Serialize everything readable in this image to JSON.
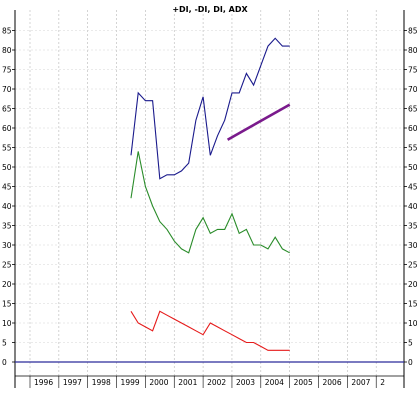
{
  "chart_data": {
    "type": "line",
    "title": "+DI, -DI, DI, ADX",
    "xlabel": "",
    "ylabel": "",
    "xlim": [
      1995.4,
      2008.1
    ],
    "ylim": [
      -2,
      88
    ],
    "y_ticks": [
      0,
      5,
      10,
      15,
      20,
      25,
      30,
      35,
      40,
      45,
      50,
      55,
      60,
      65,
      70,
      75,
      80,
      85
    ],
    "x_ticks": [
      "1996",
      "1997",
      "1998",
      "1999",
      "2000",
      "2001",
      "2002",
      "2003",
      "2004",
      "2005",
      "2006",
      "2007",
      "2"
    ],
    "grid": true,
    "legend": "none",
    "series": [
      {
        "color": "#1a1a8c",
        "x": [
          1999.5,
          1999.75,
          2000.0,
          2000.25,
          2000.5,
          2000.75,
          2001.0,
          2001.25,
          2001.5,
          2001.75,
          2002.0,
          2002.25,
          2002.5,
          2002.75,
          2003.0,
          2003.25,
          2003.5,
          2003.75,
          2004.0,
          2004.25,
          2004.5,
          2004.75,
          2005.0
        ],
        "values": [
          53,
          69,
          67,
          67,
          47,
          48,
          48,
          49,
          51,
          62,
          68,
          53,
          58,
          62,
          69,
          69,
          74,
          71,
          76,
          81,
          83,
          81,
          81
        ]
      },
      {
        "color": "#2a8c2a",
        "x": [
          1999.5,
          1999.75,
          2000.0,
          2000.25,
          2000.5,
          2000.75,
          2001.0,
          2001.25,
          2001.5,
          2001.75,
          2002.0,
          2002.25,
          2002.5,
          2002.75,
          2003.0,
          2003.25,
          2003.5,
          2003.75,
          2004.0,
          2004.25,
          2004.5,
          2004.75,
          2005.0
        ],
        "values": [
          42,
          54,
          45,
          40,
          36,
          34,
          31,
          29,
          28,
          34,
          37,
          33,
          34,
          34,
          38,
          33,
          34,
          30,
          30,
          29,
          32,
          29,
          28
        ]
      },
      {
        "color": "#e61a1a",
        "x": [
          1999.5,
          1999.75,
          2000.0,
          2000.25,
          2000.5,
          2000.75,
          2001.0,
          2001.25,
          2001.5,
          2001.75,
          2002.0,
          2002.25,
          2002.5,
          2002.75,
          2003.0,
          2003.25,
          2003.5,
          2003.75,
          2004.0,
          2004.25,
          2004.5,
          2004.75,
          2005.0
        ],
        "values": [
          13,
          10,
          9,
          8,
          13,
          12,
          11,
          10,
          9,
          8,
          7,
          10,
          9,
          8,
          7,
          6,
          5,
          5,
          4,
          3,
          3,
          3,
          3
        ]
      },
      {
        "color": "#7a1a8c",
        "x": [
          2002.85,
          2005.0
        ],
        "values": [
          57,
          66
        ]
      }
    ],
    "baseline": {
      "y": 0,
      "color": "#2a2a9a"
    }
  }
}
